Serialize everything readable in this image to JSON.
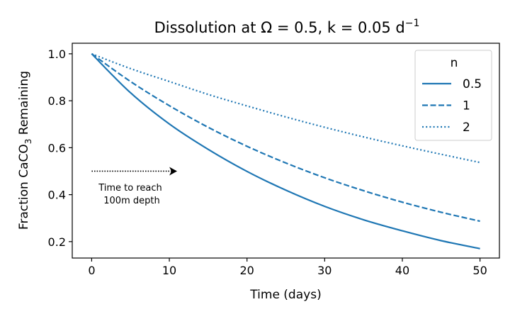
{
  "chart_data": {
    "type": "line",
    "title_main": "Dissolution at Ω = 0.5, k = 0.05 d",
    "title_sup": "−1",
    "xlabel": "Time (days)",
    "ylabel_pre": "Fraction CaCO",
    "ylabel_sub": "3",
    "ylabel_post": " Remaining",
    "xlim": [
      -2.5,
      52.5
    ],
    "ylim": [
      0.13,
      1.045
    ],
    "xticks": [
      0,
      10,
      20,
      30,
      40,
      50
    ],
    "yticks": [
      0.2,
      0.4,
      0.6,
      0.8,
      1.0
    ],
    "grid": false,
    "legend": {
      "title": "n",
      "placement": "upper right"
    },
    "line_color": "#1f77b4",
    "series": [
      {
        "name": "0.5",
        "style": "solid",
        "x": [
          0,
          5,
          10,
          15,
          20,
          25,
          30,
          35,
          40,
          45,
          50
        ],
        "y": [
          1.0,
          0.834,
          0.701,
          0.593,
          0.499,
          0.419,
          0.35,
          0.293,
          0.246,
          0.204,
          0.17
        ]
      },
      {
        "name": "1",
        "style": "dashed",
        "x": [
          0,
          5,
          10,
          15,
          20,
          25,
          30,
          35,
          40,
          45,
          50
        ],
        "y": [
          1.0,
          0.882,
          0.779,
          0.687,
          0.606,
          0.535,
          0.472,
          0.417,
          0.368,
          0.325,
          0.287
        ]
      },
      {
        "name": "2",
        "style": "dotted",
        "x": [
          0,
          5,
          10,
          15,
          20,
          25,
          30,
          35,
          40,
          45,
          50
        ],
        "y": [
          1.0,
          0.937,
          0.882,
          0.827,
          0.778,
          0.731,
          0.687,
          0.646,
          0.608,
          0.572,
          0.537
        ]
      }
    ],
    "annotation": {
      "text_line1": "Time to reach",
      "text_line2": "100m depth",
      "arrow_from": [
        0,
        0.5
      ],
      "arrow_to": [
        11,
        0.5
      ]
    }
  }
}
